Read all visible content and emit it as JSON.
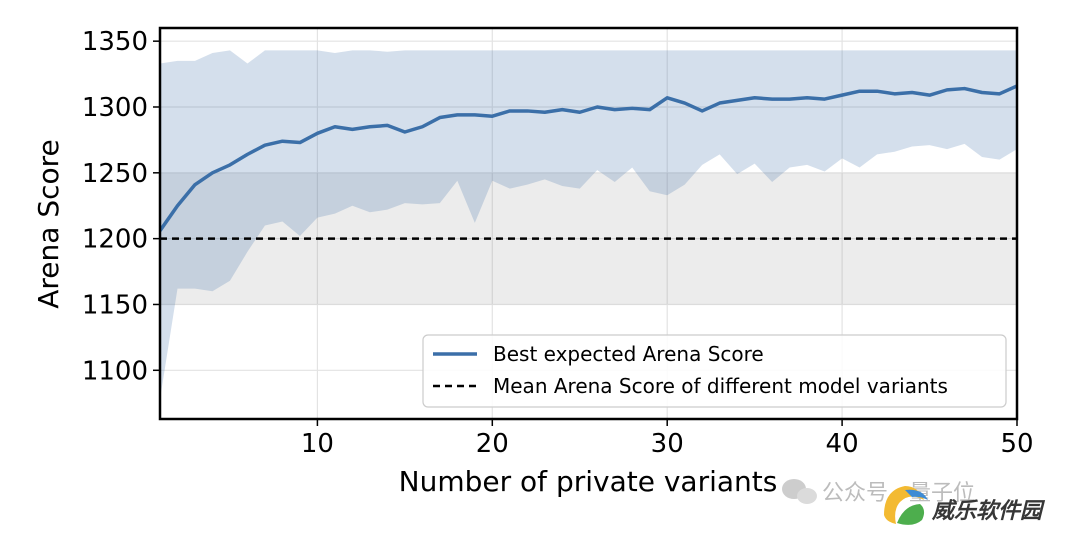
{
  "chart_data": {
    "type": "line",
    "xlabel": "Number of private variants",
    "ylabel": "Arena Score",
    "xlim": [
      1,
      50
    ],
    "ylim": [
      1063,
      1360
    ],
    "xticks": [
      10,
      20,
      30,
      40,
      50
    ],
    "yticks": [
      1100,
      1150,
      1200,
      1250,
      1300,
      1350
    ],
    "grid": true,
    "legend_placement": "lower-right",
    "series": [
      {
        "name": "Best expected Arena Score",
        "color": "#3b6fa8",
        "x": [
          1,
          2,
          3,
          4,
          5,
          6,
          7,
          8,
          9,
          10,
          11,
          12,
          13,
          14,
          15,
          16,
          17,
          18,
          19,
          20,
          21,
          22,
          23,
          24,
          25,
          26,
          27,
          28,
          29,
          30,
          31,
          32,
          33,
          34,
          35,
          36,
          37,
          38,
          39,
          40,
          41,
          42,
          43,
          44,
          45,
          46,
          47,
          48,
          49,
          50
        ],
        "y": [
          1206,
          1225,
          1241,
          1250,
          1256,
          1264,
          1271,
          1274,
          1273,
          1280,
          1285,
          1283,
          1285,
          1286,
          1281,
          1285,
          1292,
          1294,
          1294,
          1293,
          1297,
          1297,
          1296,
          1298,
          1296,
          1300,
          1298,
          1299,
          1298,
          1307,
          1303,
          1297,
          1303,
          1305,
          1307,
          1306,
          1306,
          1307,
          1306,
          1309,
          1312,
          1312,
          1310,
          1311,
          1309,
          1313,
          1314,
          1311,
          1310,
          1316
        ],
        "band_upper": [
          1333,
          1335,
          1335,
          1341,
          1343,
          1333,
          1343,
          1343,
          1343,
          1343,
          1341,
          1343,
          1343,
          1342,
          1343,
          1343,
          1343,
          1343,
          1343,
          1343,
          1343,
          1343,
          1343,
          1343,
          1343,
          1343,
          1343,
          1343,
          1343,
          1343,
          1343,
          1343,
          1343,
          1343,
          1343,
          1343,
          1343,
          1343,
          1343,
          1343,
          1343,
          1343,
          1343,
          1343,
          1343,
          1343,
          1343,
          1343,
          1343,
          1343
        ],
        "band_lower": [
          1078,
          1162,
          1162,
          1160,
          1168,
          1190,
          1210,
          1213,
          1202,
          1216,
          1219,
          1225,
          1220,
          1222,
          1227,
          1226,
          1227,
          1244,
          1212,
          1244,
          1238,
          1241,
          1245,
          1240,
          1238,
          1252,
          1243,
          1254,
          1236,
          1233,
          1241,
          1256,
          1264,
          1249,
          1257,
          1243,
          1254,
          1256,
          1251,
          1261,
          1254,
          1264,
          1266,
          1270,
          1271,
          1268,
          1272,
          1262,
          1260,
          1268
        ]
      },
      {
        "name": "Mean Arena Score of different model variants",
        "color": "#000000",
        "style": "dashed",
        "value": 1200,
        "band": [
          1150,
          1250
        ]
      }
    ]
  },
  "watermark": {
    "text": "公众号 · 量子位",
    "brand": "威乐软件园"
  }
}
